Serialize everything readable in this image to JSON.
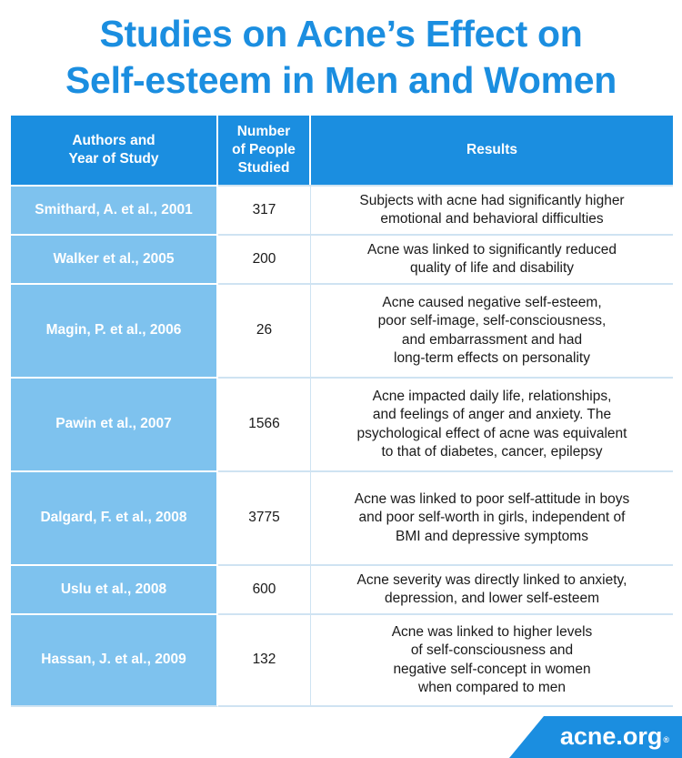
{
  "title": {
    "line1": "Studies on Acne’s Effect on",
    "line2": "Self-esteem in Men and Women"
  },
  "table": {
    "headers": {
      "authors": "Authors and\nYear of Study",
      "people": "Number\nof People\nStudied",
      "results": "Results"
    },
    "rows": [
      {
        "author": "Smithard, A. et al., 2001",
        "count": "317",
        "results": "Subjects with acne had significantly higher\nemotional and behavioral difficulties"
      },
      {
        "author": "Walker et al., 2005",
        "count": "200",
        "results": "Acne was linked to significantly reduced\nquality of life and disability"
      },
      {
        "author": "Magin, P. et al., 2006",
        "count": "26",
        "results": "Acne caused negative self-esteem,\npoor self-image, self-consciousness,\nand embarrassment and had\nlong-term effects on personality"
      },
      {
        "author": "Pawin et al., 2007",
        "count": "1566",
        "results": "Acne impacted daily life, relationships,\nand feelings of anger and anxiety. The\npsychological effect of acne was equivalent\nto that of diabetes, cancer, epilepsy"
      },
      {
        "author": "Dalgard, F. et al., 2008",
        "count": "3775",
        "results": "Acne was linked to poor self-attitude in boys\nand poor self-worth in girls, independent of\nBMI and depressive symptoms"
      },
      {
        "author": "Uslu et al., 2008",
        "count": "600",
        "results": "Acne severity was directly linked to anxiety,\ndepression, and lower self-esteem"
      },
      {
        "author": "Hassan, J. et al., 2009",
        "count": "132",
        "results": "Acne was linked to higher levels\nof self-consciousness and\nnegative self-concept in women\nwhen compared to men"
      }
    ]
  },
  "brand": {
    "name": "acne.org",
    "mark": "®"
  }
}
